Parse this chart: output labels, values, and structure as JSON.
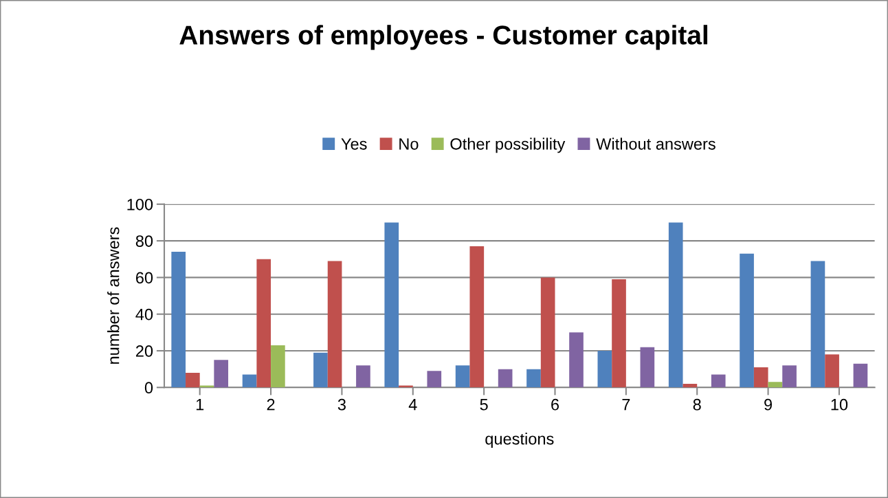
{
  "chart_data": {
    "type": "bar",
    "title": "Answers of employees - Customer capital",
    "xlabel": "questions",
    "ylabel": "number of answers",
    "categories": [
      "1",
      "2",
      "3",
      "4",
      "5",
      "6",
      "7",
      "8",
      "9",
      "10"
    ],
    "series": [
      {
        "name": "Yes",
        "color": "#4f81bd",
        "values": [
          74,
          7,
          19,
          90,
          12,
          10,
          20,
          90,
          73,
          69
        ]
      },
      {
        "name": "No",
        "color": "#c0504d",
        "values": [
          8,
          70,
          69,
          1,
          77,
          60,
          59,
          2,
          11,
          18
        ]
      },
      {
        "name": "Other possibility",
        "color": "#9bbb59",
        "values": [
          1,
          23,
          0,
          0,
          0,
          0,
          0,
          0,
          3,
          0
        ]
      },
      {
        "name": "Without answers",
        "color": "#8064a2",
        "values": [
          15,
          0,
          12,
          9,
          10,
          30,
          22,
          7,
          12,
          13
        ]
      }
    ],
    "ylim": [
      0,
      100
    ],
    "yticks": [
      0,
      20,
      40,
      60,
      80,
      100
    ],
    "grid": "y",
    "legend": "top"
  }
}
